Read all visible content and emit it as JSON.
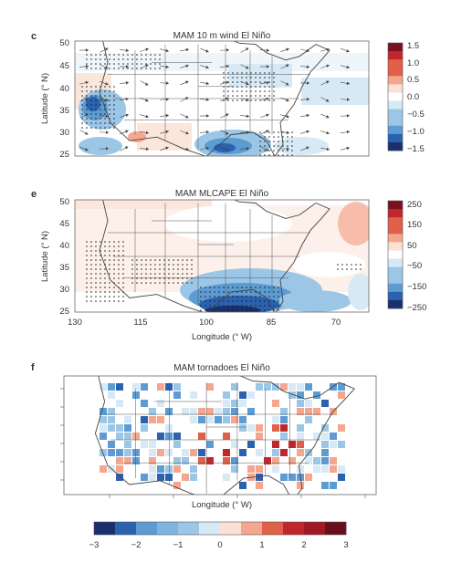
{
  "panels": [
    {
      "letter": "c",
      "title": "MAM 10 m wind El Niño",
      "ylabel": "Latitude (° N)",
      "yticks": [
        "50",
        "45",
        "40",
        "35",
        "30",
        "25"
      ],
      "colorbar": {
        "ticks": [
          "1.5",
          "1.0",
          "0.5",
          "0.0",
          "−0.5",
          "−1.0",
          "−1.5"
        ]
      }
    },
    {
      "letter": "e",
      "title": "MAM MLCAPE El Niño",
      "ylabel": "Latitude (° N)",
      "yticks": [
        "50",
        "45",
        "40",
        "35",
        "30",
        "25"
      ],
      "xticks": [
        "130",
        "115",
        "100",
        "85",
        "70"
      ],
      "xlabel": "Longitude (° W)",
      "colorbar": {
        "ticks": [
          "250",
          "150",
          "50",
          "−50",
          "−150",
          "−250"
        ]
      }
    },
    {
      "letter": "f",
      "title": "MAM tornadoes El Niño",
      "xlabel": "Longitude (° W)",
      "colorbar": {
        "ticks": [
          "−3",
          "−2",
          "−1",
          "0",
          "1",
          "2",
          "3"
        ]
      }
    }
  ],
  "colors": {
    "diverging": [
      "#1a2f6b",
      "#2a62b0",
      "#5d9bd3",
      "#9cc6e6",
      "#d6e9f5",
      "#ffffff",
      "#fbe0d6",
      "#f4a78e",
      "#e0604a",
      "#c0272d",
      "#7a1020"
    ]
  }
}
